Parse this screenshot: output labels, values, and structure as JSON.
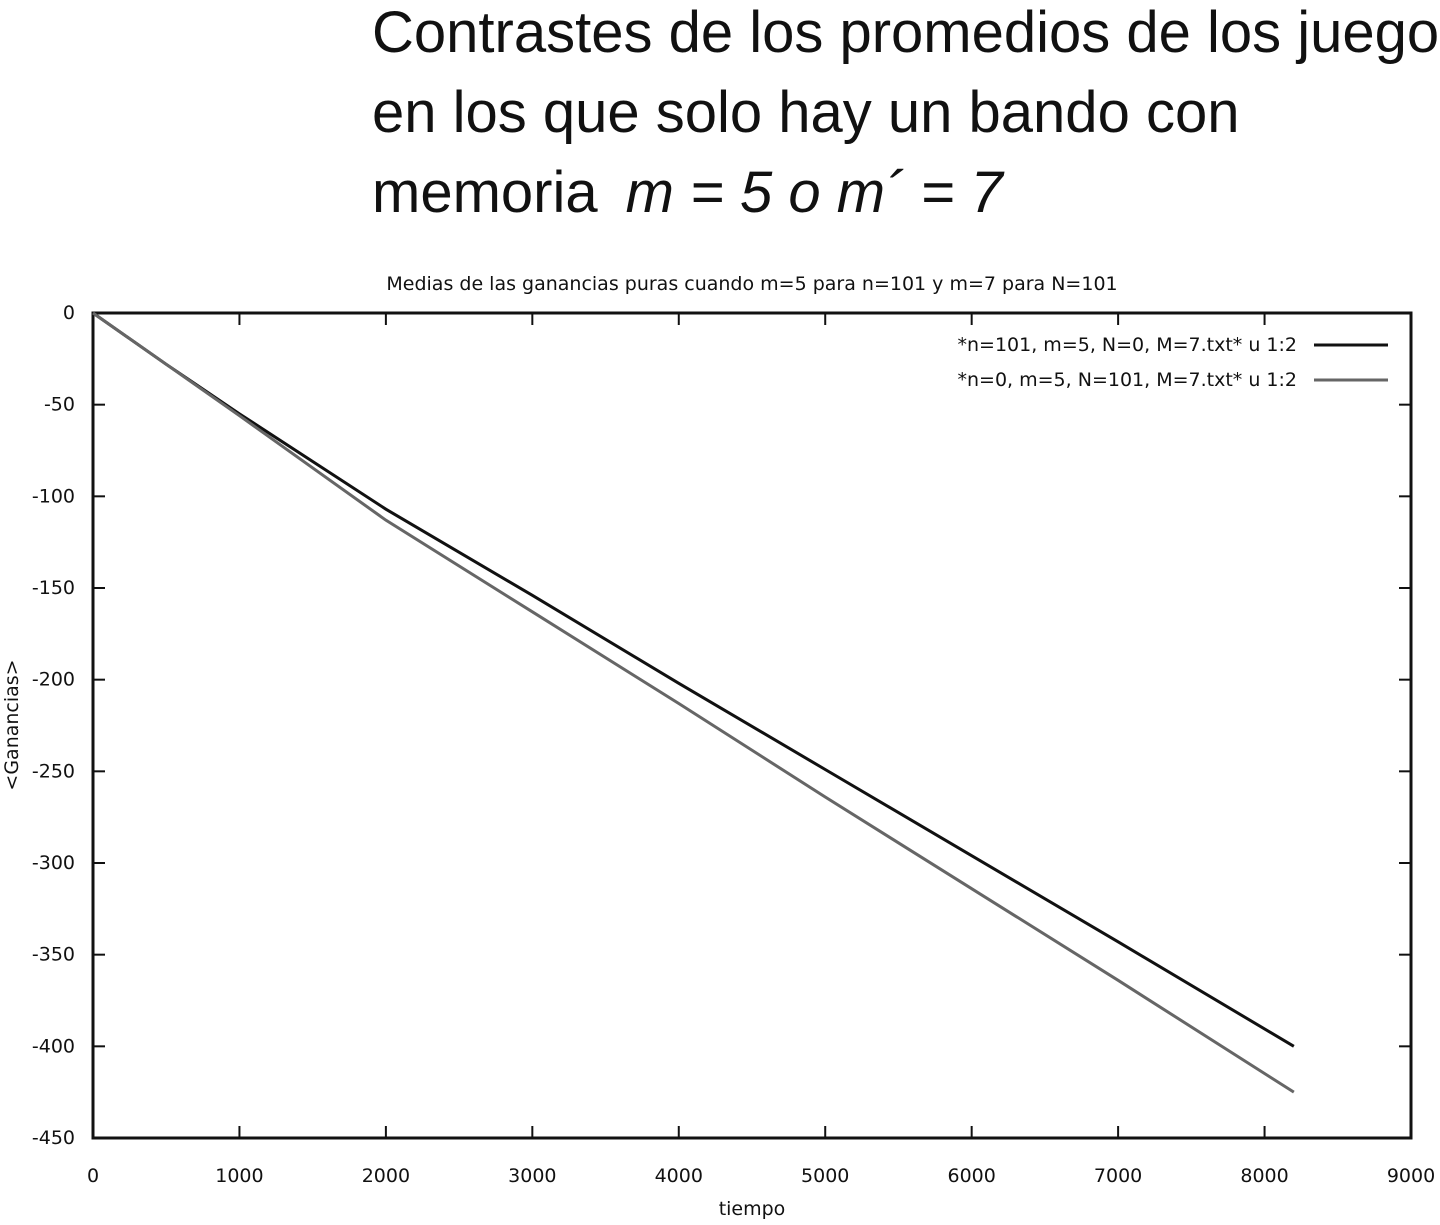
{
  "heading": {
    "lines": [
      "Contrastes de los promedios de los juegos",
      "en los que solo hay un bando con"
    ],
    "last_line": "memoria",
    "formula": "m = 5 o m´ = 7"
  },
  "chart_data": {
    "type": "line",
    "title": "Medias de las ganancias puras cuando m=5 para n=101 y m=7 para N=101",
    "x_label": "tiempo",
    "y_label": "<Ganancias>",
    "x": [
      0,
      500,
      1000,
      2000,
      3000,
      4000,
      5000,
      6000,
      7000,
      8200
    ],
    "series": [
      {
        "name": "*n=101, m=5, N=0, M=7.txt* u 1:2",
        "color": "#111111",
        "values": [
          0,
          -28,
          -55,
          -107,
          -154,
          -202,
          -249,
          -296,
          -343,
          -400
        ]
      },
      {
        "name": "*n=0, m=5, N=101, M=7.txt* u 1:2",
        "color": "#666666",
        "values": [
          0,
          -28,
          -56,
          -113,
          -163,
          -213,
          -264,
          -314,
          -364,
          -425
        ]
      }
    ],
    "xlim": [
      0,
      9000
    ],
    "xticks": [
      0,
      1000,
      2000,
      3000,
      4000,
      5000,
      6000,
      7000,
      8000,
      9000
    ],
    "ylim": [
      -450,
      0
    ],
    "yticks": [
      0,
      -50,
      -100,
      -150,
      -200,
      -250,
      -300,
      -350,
      -400,
      -450
    ],
    "legend": "top-right"
  }
}
